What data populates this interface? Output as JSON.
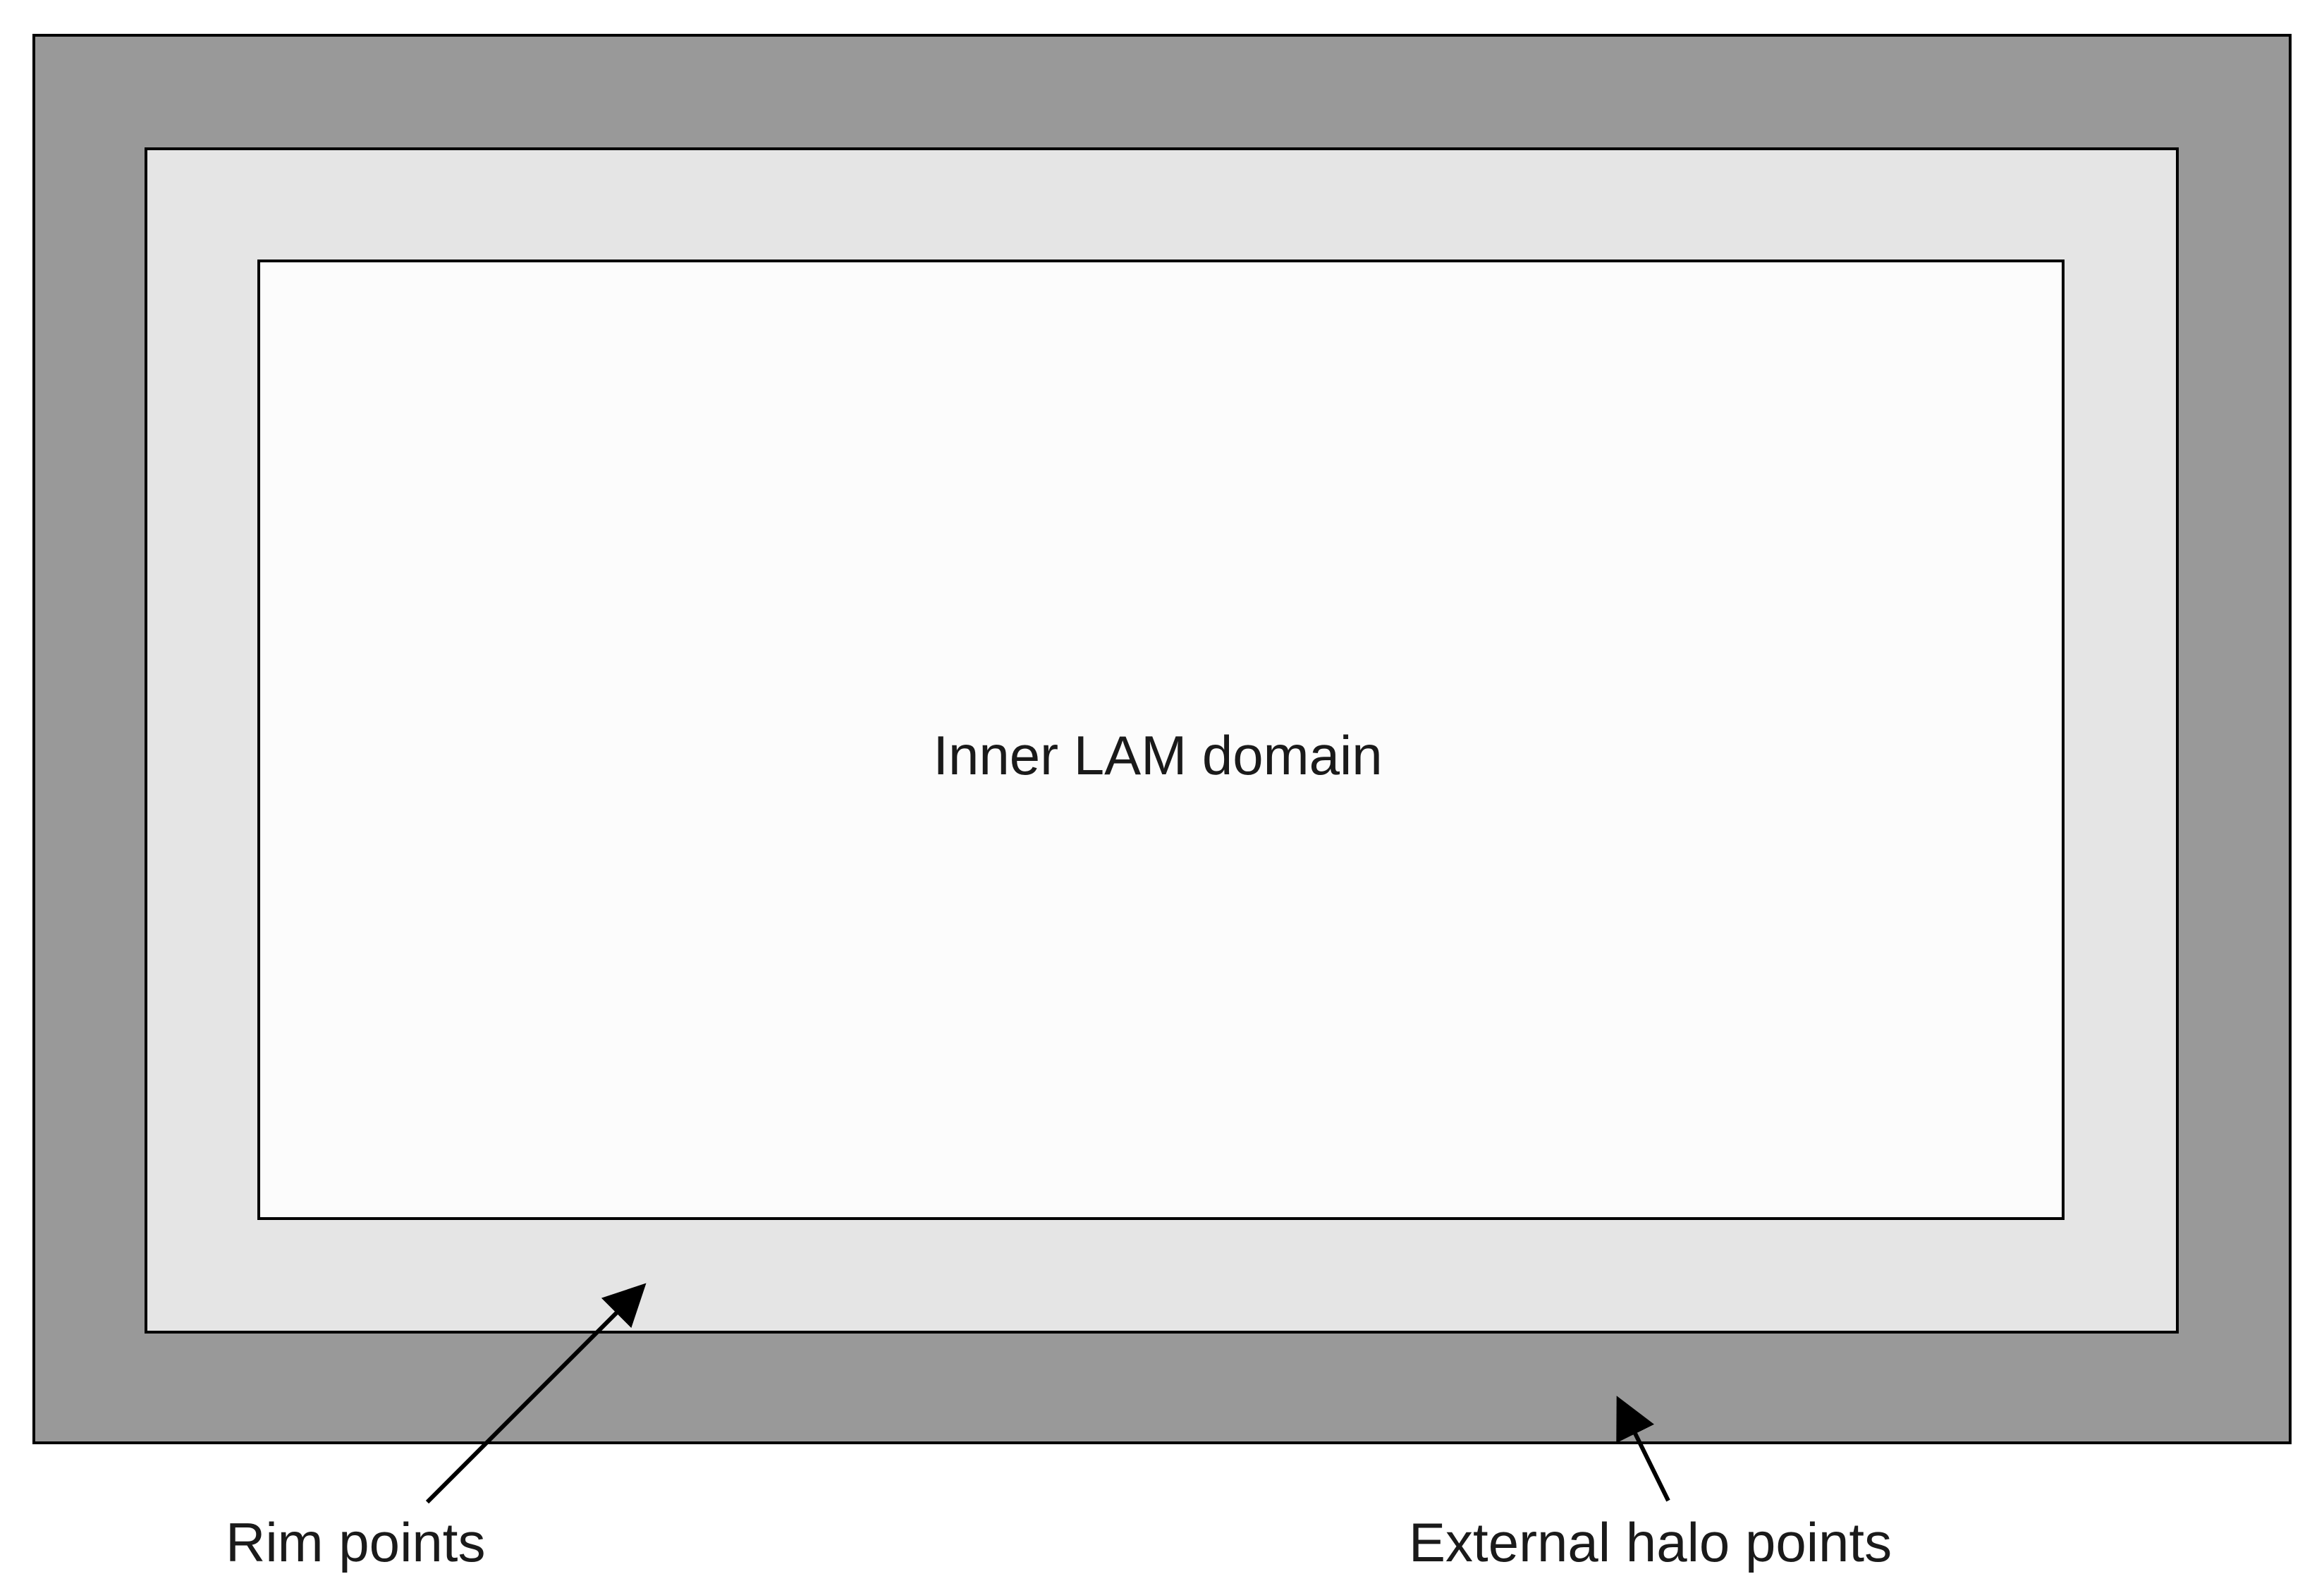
{
  "diagram": {
    "regions": {
      "external_halo": {
        "fill": "#999999"
      },
      "rim": {
        "fill": "#e5e5e5"
      },
      "inner_domain": {
        "fill": "#fcfcfc",
        "label": "Inner LAM domain"
      }
    },
    "annotations": {
      "rim_label": "Rim points",
      "halo_label": "External halo points"
    },
    "stroke_color": "#000000"
  }
}
